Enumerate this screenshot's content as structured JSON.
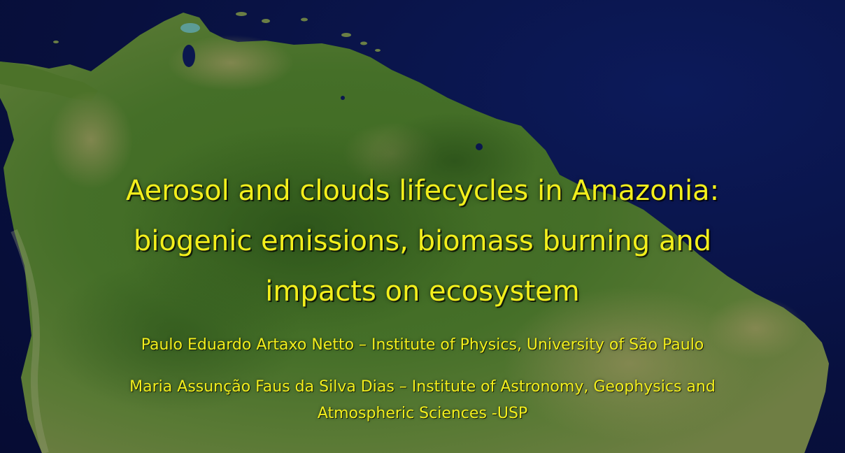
{
  "slide": {
    "title_lines": [
      "Aerosol and clouds lifecycles in Amazonia:",
      "biogenic emissions, biomass burning and",
      "impacts on ecosystem"
    ],
    "authors": [
      "Paulo Eduardo Artaxo Netto – Institute of Physics, University of São Paulo",
      "Maria Assunção Faus da Silva Dias – Institute of Astronomy, Geophysics and",
      "Atmospheric Sciences -USP"
    ]
  },
  "colors": {
    "ocean": "#0a1346",
    "land_forest": "#3d6a22",
    "land_light": "#7a8a4a",
    "text": "#f3ef1c"
  },
  "background_icon": "satellite-map-south-america"
}
